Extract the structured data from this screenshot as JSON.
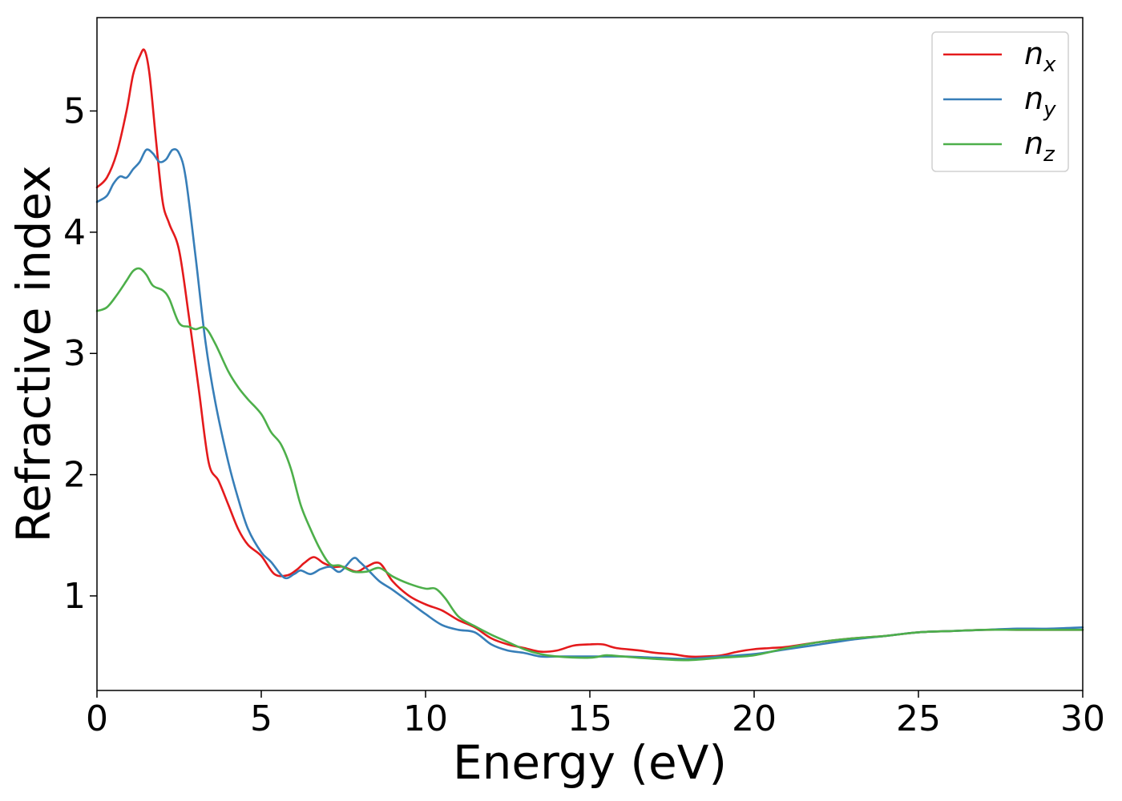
{
  "chart_data": {
    "type": "line",
    "title": "",
    "xlabel": "Energy (eV)",
    "ylabel": "Refractive index",
    "xlim": [
      0,
      30
    ],
    "ylim": [
      0.22,
      5.77
    ],
    "xticks": [
      0,
      5,
      10,
      15,
      20,
      25,
      30
    ],
    "yticks": [
      1,
      2,
      3,
      4,
      5
    ],
    "grid": false,
    "legend_position": "top-right",
    "series": [
      {
        "name": "n",
        "subscript": "x",
        "color": "#e41a1c",
        "x": [
          0,
          0.3,
          0.6,
          0.9,
          1.1,
          1.3,
          1.45,
          1.6,
          1.8,
          2.0,
          2.2,
          2.5,
          2.8,
          3.1,
          3.4,
          3.7,
          4.0,
          4.3,
          4.6,
          5.0,
          5.4,
          5.8,
          6.1,
          6.3,
          6.6,
          6.9,
          7.2,
          7.5,
          7.9,
          8.2,
          8.6,
          9.0,
          9.5,
          10.0,
          10.5,
          11.0,
          11.5,
          12.0,
          12.5,
          13.0,
          13.5,
          14.0,
          14.5,
          15.0,
          15.4,
          15.8,
          16.5,
          17.0,
          17.5,
          18.0,
          18.5,
          19.0,
          19.5,
          20.0,
          20.5,
          21.0,
          22.0,
          23.0,
          24.0,
          25.0,
          26.0,
          27.0,
          28.0,
          29.0,
          30.0
        ],
        "y": [
          4.37,
          4.45,
          4.65,
          5.0,
          5.3,
          5.45,
          5.5,
          5.3,
          4.75,
          4.25,
          4.07,
          3.85,
          3.3,
          2.7,
          2.1,
          1.95,
          1.75,
          1.55,
          1.42,
          1.33,
          1.18,
          1.17,
          1.22,
          1.27,
          1.32,
          1.27,
          1.24,
          1.24,
          1.2,
          1.24,
          1.27,
          1.12,
          1.0,
          0.93,
          0.88,
          0.8,
          0.74,
          0.65,
          0.6,
          0.57,
          0.54,
          0.55,
          0.59,
          0.6,
          0.6,
          0.57,
          0.55,
          0.53,
          0.52,
          0.5,
          0.5,
          0.51,
          0.54,
          0.56,
          0.57,
          0.58,
          0.62,
          0.65,
          0.67,
          0.7,
          0.71,
          0.72,
          0.72,
          0.72,
          0.72
        ]
      },
      {
        "name": "n",
        "subscript": "y",
        "color": "#377eb8",
        "x": [
          0,
          0.3,
          0.5,
          0.7,
          0.9,
          1.1,
          1.3,
          1.5,
          1.7,
          1.9,
          2.1,
          2.3,
          2.5,
          2.7,
          3.0,
          3.3,
          3.6,
          4.0,
          4.3,
          4.6,
          5.0,
          5.3,
          5.7,
          6.0,
          6.2,
          6.5,
          6.8,
          7.1,
          7.4,
          7.8,
          8.0,
          8.3,
          8.6,
          9.0,
          9.5,
          10.0,
          10.5,
          11.0,
          11.5,
          12.0,
          12.5,
          13.0,
          13.5,
          14.0,
          15.0,
          16.0,
          17.0,
          18.0,
          19.0,
          20.0,
          21.0,
          22.0,
          23.0,
          24.0,
          25.0,
          26.0,
          27.0,
          28.0,
          29.0,
          30.0
        ],
        "y": [
          4.25,
          4.3,
          4.4,
          4.46,
          4.45,
          4.52,
          4.58,
          4.68,
          4.65,
          4.58,
          4.6,
          4.68,
          4.65,
          4.45,
          3.8,
          3.1,
          2.6,
          2.1,
          1.8,
          1.55,
          1.36,
          1.28,
          1.15,
          1.18,
          1.21,
          1.18,
          1.22,
          1.24,
          1.2,
          1.31,
          1.28,
          1.2,
          1.12,
          1.05,
          0.95,
          0.85,
          0.76,
          0.72,
          0.7,
          0.6,
          0.55,
          0.53,
          0.5,
          0.5,
          0.5,
          0.5,
          0.49,
          0.48,
          0.5,
          0.52,
          0.56,
          0.6,
          0.64,
          0.67,
          0.7,
          0.71,
          0.72,
          0.73,
          0.73,
          0.74
        ]
      },
      {
        "name": "n",
        "subscript": "z",
        "color": "#4daf4a",
        "x": [
          0,
          0.3,
          0.6,
          0.9,
          1.1,
          1.3,
          1.5,
          1.7,
          2.0,
          2.2,
          2.5,
          2.8,
          3.0,
          3.3,
          3.6,
          4.0,
          4.3,
          4.6,
          5.0,
          5.3,
          5.6,
          5.9,
          6.2,
          6.5,
          6.8,
          7.1,
          7.4,
          7.8,
          8.2,
          8.6,
          9.0,
          9.5,
          10.0,
          10.3,
          10.6,
          11.0,
          11.5,
          12.0,
          12.5,
          13.0,
          13.5,
          14.0,
          15.0,
          15.5,
          16.0,
          17.0,
          18.0,
          19.0,
          20.0,
          21.0,
          22.0,
          23.0,
          24.0,
          25.0,
          26.0,
          27.0,
          28.0,
          29.0,
          30.0
        ],
        "y": [
          3.35,
          3.38,
          3.48,
          3.6,
          3.68,
          3.7,
          3.65,
          3.56,
          3.52,
          3.45,
          3.25,
          3.22,
          3.2,
          3.21,
          3.08,
          2.85,
          2.72,
          2.62,
          2.5,
          2.35,
          2.25,
          2.05,
          1.75,
          1.55,
          1.38,
          1.26,
          1.25,
          1.2,
          1.2,
          1.23,
          1.16,
          1.1,
          1.06,
          1.06,
          0.98,
          0.83,
          0.75,
          0.68,
          0.62,
          0.56,
          0.52,
          0.5,
          0.49,
          0.51,
          0.5,
          0.48,
          0.47,
          0.49,
          0.51,
          0.57,
          0.62,
          0.65,
          0.67,
          0.7,
          0.71,
          0.72,
          0.72,
          0.72,
          0.72
        ]
      }
    ]
  }
}
